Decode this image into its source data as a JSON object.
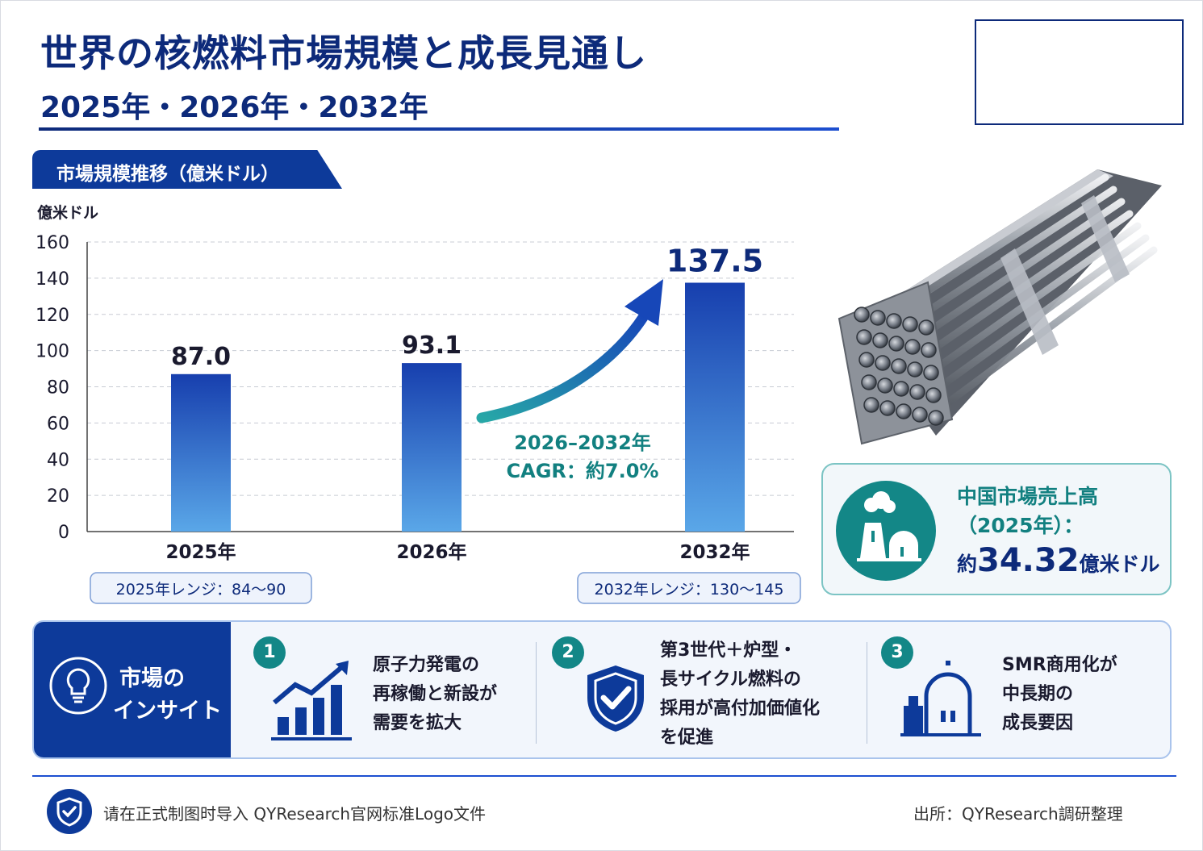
{
  "header": {
    "title": "世界の核燃料市場規模と成長見通し",
    "subtitle": "2025年・2026年・2032年"
  },
  "section_label": "市場規模推移（億米ドル）",
  "chart_data": {
    "type": "bar",
    "ylabel": "億米ドル",
    "ylim": [
      0,
      160
    ],
    "yticks": [
      "0",
      "20",
      "40",
      "60",
      "80",
      "100",
      "120",
      "140",
      "160"
    ],
    "categories": [
      "2025年",
      "2026年",
      "2032年"
    ],
    "values": [
      87.0,
      93.1,
      137.5
    ],
    "value_labels": [
      "87.0",
      "93.1",
      "137.5"
    ],
    "grid": true,
    "annotation": {
      "line1": "2026–2032年",
      "line2": "CAGR：約7.0%"
    },
    "range_notes": [
      "2025年レンジ：84〜90",
      "2032年レンジ：130〜145"
    ],
    "colors": {
      "bar_top": "#173fae",
      "bar_bottom": "#5aa7e8",
      "arrow": "#138787",
      "highlight_label": "#0d2a7a"
    }
  },
  "china": {
    "line1": "中国市場売上高",
    "line2": "（2025年）：",
    "prefix": "約",
    "value": "34.32",
    "unit": "億米ドル"
  },
  "insight": {
    "title_line1": "市場の",
    "title_line2": "インサイト",
    "items": [
      {
        "num": "1",
        "icon": "growth-chart-icon",
        "lines": [
          "原子力発電の",
          "再稼働と新設が",
          "需要を拡大"
        ]
      },
      {
        "num": "2",
        "icon": "shield-check-icon",
        "lines": [
          "第3世代＋炉型・",
          "長サイクル燃料の",
          "採用が高付加価値化",
          "を促進"
        ]
      },
      {
        "num": "3",
        "icon": "reactor-facility-icon",
        "lines": [
          "SMR商用化が",
          "中長期の",
          "成長要因"
        ]
      }
    ]
  },
  "footer": {
    "note": "请在正式制图时导入 QYResearch官网标准Logo文件",
    "source": "出所：QYResearch調研整理"
  },
  "colors": {
    "navy": "#0d2a7a",
    "blue": "#0d3a9a",
    "teal": "#138787"
  }
}
